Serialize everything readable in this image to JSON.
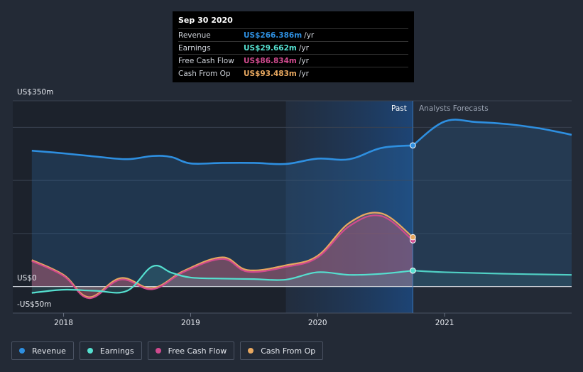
{
  "chart_data": {
    "type": "area",
    "currency_unit": "US$ m",
    "y_axis": {
      "top_label": "US$350m",
      "zero_label": "US$0",
      "bottom_label": "-US$50m",
      "ylim": [
        -50,
        350
      ]
    },
    "x_axis": {
      "ticks": [
        "2018",
        "2019",
        "2020",
        "2021"
      ],
      "xlim": [
        2017.6,
        2022.0
      ]
    },
    "periods": {
      "past_label": "Past",
      "forecast_label": "Analysts Forecasts",
      "divider_x": 2020.75
    },
    "series": [
      {
        "name": "Revenue",
        "color": "#2e8fe0",
        "points": [
          [
            2017.75,
            256
          ],
          [
            2018.0,
            251
          ],
          [
            2018.25,
            245
          ],
          [
            2018.5,
            240
          ],
          [
            2018.7,
            246
          ],
          [
            2018.85,
            244
          ],
          [
            2019.0,
            232
          ],
          [
            2019.25,
            233
          ],
          [
            2019.5,
            233
          ],
          [
            2019.75,
            231
          ],
          [
            2020.0,
            241
          ],
          [
            2020.25,
            240
          ],
          [
            2020.5,
            261
          ],
          [
            2020.75,
            266
          ]
        ],
        "forecast": [
          [
            2020.75,
            266
          ],
          [
            2021.0,
            311
          ],
          [
            2021.25,
            310
          ],
          [
            2021.5,
            306
          ],
          [
            2021.75,
            298
          ],
          [
            2022.0,
            286
          ]
        ]
      },
      {
        "name": "Earnings",
        "color": "#55e0d0",
        "points": [
          [
            2017.75,
            -12
          ],
          [
            2018.0,
            -6
          ],
          [
            2018.25,
            -8
          ],
          [
            2018.5,
            -8
          ],
          [
            2018.7,
            38
          ],
          [
            2018.85,
            26
          ],
          [
            2019.0,
            17
          ],
          [
            2019.25,
            15
          ],
          [
            2019.5,
            14
          ],
          [
            2019.75,
            13
          ],
          [
            2020.0,
            27
          ],
          [
            2020.25,
            22
          ],
          [
            2020.5,
            24
          ],
          [
            2020.75,
            30
          ]
        ],
        "forecast": [
          [
            2020.75,
            30
          ],
          [
            2021.0,
            27
          ],
          [
            2021.5,
            24
          ],
          [
            2022.0,
            22
          ]
        ]
      },
      {
        "name": "Free Cash Flow",
        "color": "#d04a8e",
        "points": [
          [
            2017.75,
            48
          ],
          [
            2018.0,
            20
          ],
          [
            2018.2,
            -22
          ],
          [
            2018.45,
            13
          ],
          [
            2018.7,
            -5
          ],
          [
            2018.95,
            28
          ],
          [
            2019.25,
            52
          ],
          [
            2019.45,
            28
          ],
          [
            2019.75,
            37
          ],
          [
            2020.0,
            55
          ],
          [
            2020.25,
            114
          ],
          [
            2020.5,
            133
          ],
          [
            2020.75,
            87
          ]
        ]
      },
      {
        "name": "Cash From Op",
        "color": "#e8a860",
        "points": [
          [
            2017.75,
            50
          ],
          [
            2018.0,
            22
          ],
          [
            2018.2,
            -20
          ],
          [
            2018.45,
            16
          ],
          [
            2018.7,
            -3
          ],
          [
            2018.95,
            30
          ],
          [
            2019.25,
            55
          ],
          [
            2019.45,
            31
          ],
          [
            2019.75,
            40
          ],
          [
            2020.0,
            58
          ],
          [
            2020.25,
            120
          ],
          [
            2020.5,
            138
          ],
          [
            2020.75,
            93
          ]
        ]
      }
    ]
  },
  "tooltip": {
    "date": "Sep 30 2020",
    "rows": [
      {
        "label": "Revenue",
        "value": "US$266.386m",
        "unit": "/yr",
        "color": "#2e8fe0"
      },
      {
        "label": "Earnings",
        "value": "US$29.662m",
        "unit": "/yr",
        "color": "#55e0d0"
      },
      {
        "label": "Free Cash Flow",
        "value": "US$86.834m",
        "unit": "/yr",
        "color": "#d04a8e"
      },
      {
        "label": "Cash From Op",
        "value": "US$93.483m",
        "unit": "/yr",
        "color": "#e8a860"
      }
    ]
  },
  "legend": [
    {
      "label": "Revenue",
      "color": "#2e8fe0"
    },
    {
      "label": "Earnings",
      "color": "#55e0d0"
    },
    {
      "label": "Free Cash Flow",
      "color": "#d04a8e"
    },
    {
      "label": "Cash From Op",
      "color": "#e8a860"
    }
  ]
}
